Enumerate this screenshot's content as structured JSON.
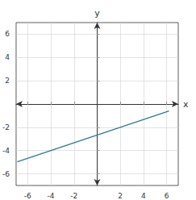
{
  "chart_data": {
    "type": "line",
    "x": [
      -6.9,
      6.2
    ],
    "values": [
      -4.966666666666667,
      -0.6
    ],
    "color": "#2e7d8c",
    "xlabel": "x",
    "ylabel": "y",
    "xlim": [
      -7,
      7
    ],
    "ylim": [
      -7,
      7
    ],
    "xticks": [
      -6,
      -4,
      -2,
      2,
      4,
      6
    ],
    "yticks": [
      -6,
      -4,
      -2,
      2,
      4,
      6
    ],
    "grid": true
  }
}
